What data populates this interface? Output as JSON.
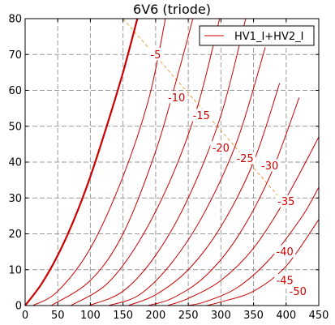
{
  "chart_data": {
    "type": "line",
    "title": "6V6  (triode)",
    "xlabel": "",
    "ylabel": "",
    "xlim": [
      0,
      450
    ],
    "ylim": [
      0,
      80
    ],
    "xticks": [
      0,
      50,
      100,
      150,
      200,
      250,
      300,
      350,
      400,
      450
    ],
    "yticks": [
      0,
      10,
      20,
      30,
      40,
      50,
      60,
      70,
      80
    ],
    "grid": true,
    "legend": {
      "position": "top-right",
      "entries": [
        "HV1_I+HV2_I"
      ]
    },
    "colors": {
      "curve": "#cc0000",
      "load_line": "#f0a040",
      "grid": "#9a9a9a"
    },
    "series": [
      {
        "grid_voltage": 0,
        "label": "",
        "x": [
          0,
          25,
          50,
          75,
          100,
          125,
          150,
          172
        ],
        "y": [
          0,
          6,
          14,
          24,
          36,
          50,
          65,
          80
        ]
      },
      {
        "grid_voltage": -5,
        "label": "-5",
        "x": [
          12,
          50,
          100,
          150,
          190,
          215
        ],
        "y": [
          0,
          4,
          16,
          36,
          58,
          80
        ]
      },
      {
        "grid_voltage": -10,
        "label": "-10",
        "x": [
          40,
          100,
          150,
          200,
          235,
          257
        ],
        "y": [
          0,
          7,
          20,
          43,
          65,
          80
        ]
      },
      {
        "grid_voltage": -15,
        "label": "-15",
        "x": [
          70,
          125,
          175,
          225,
          265,
          298
        ],
        "y": [
          0,
          6,
          18,
          36,
          56,
          80
        ]
      },
      {
        "grid_voltage": -20,
        "label": "-20",
        "x": [
          98,
          150,
          200,
          250,
          300,
          338
        ],
        "y": [
          0,
          4,
          14,
          30,
          53,
          80
        ]
      },
      {
        "grid_voltage": -25,
        "label": "-25",
        "x": [
          128,
          175,
          225,
          275,
          325,
          368
        ],
        "y": [
          0,
          3,
          12,
          26,
          46,
          72
        ]
      },
      {
        "grid_voltage": -30,
        "label": "-30",
        "x": [
          158,
          200,
          250,
          300,
          350,
          390
        ],
        "y": [
          0,
          3,
          10,
          22,
          40,
          62
        ]
      },
      {
        "grid_voltage": -35,
        "label": "-35",
        "x": [
          188,
          225,
          275,
          325,
          375,
          420
        ],
        "y": [
          0,
          2,
          8,
          19,
          36,
          58
        ]
      },
      {
        "grid_voltage": -40,
        "label": "-40",
        "x": [
          218,
          250,
          300,
          350,
          400,
          450
        ],
        "y": [
          0,
          2,
          7,
          16,
          30,
          47
        ]
      },
      {
        "grid_voltage": -45,
        "label": "-45",
        "x": [
          248,
          275,
          325,
          375,
          425,
          450
        ],
        "y": [
          0,
          1,
          5,
          13,
          25,
          33
        ]
      },
      {
        "grid_voltage": -50,
        "label": "-50",
        "x": [
          278,
          300,
          350,
          400,
          450
        ],
        "y": [
          0,
          1,
          4,
          11,
          24
        ]
      }
    ],
    "load_line": {
      "x": [
        150,
        400
      ],
      "y": [
        80,
        28
      ]
    }
  }
}
